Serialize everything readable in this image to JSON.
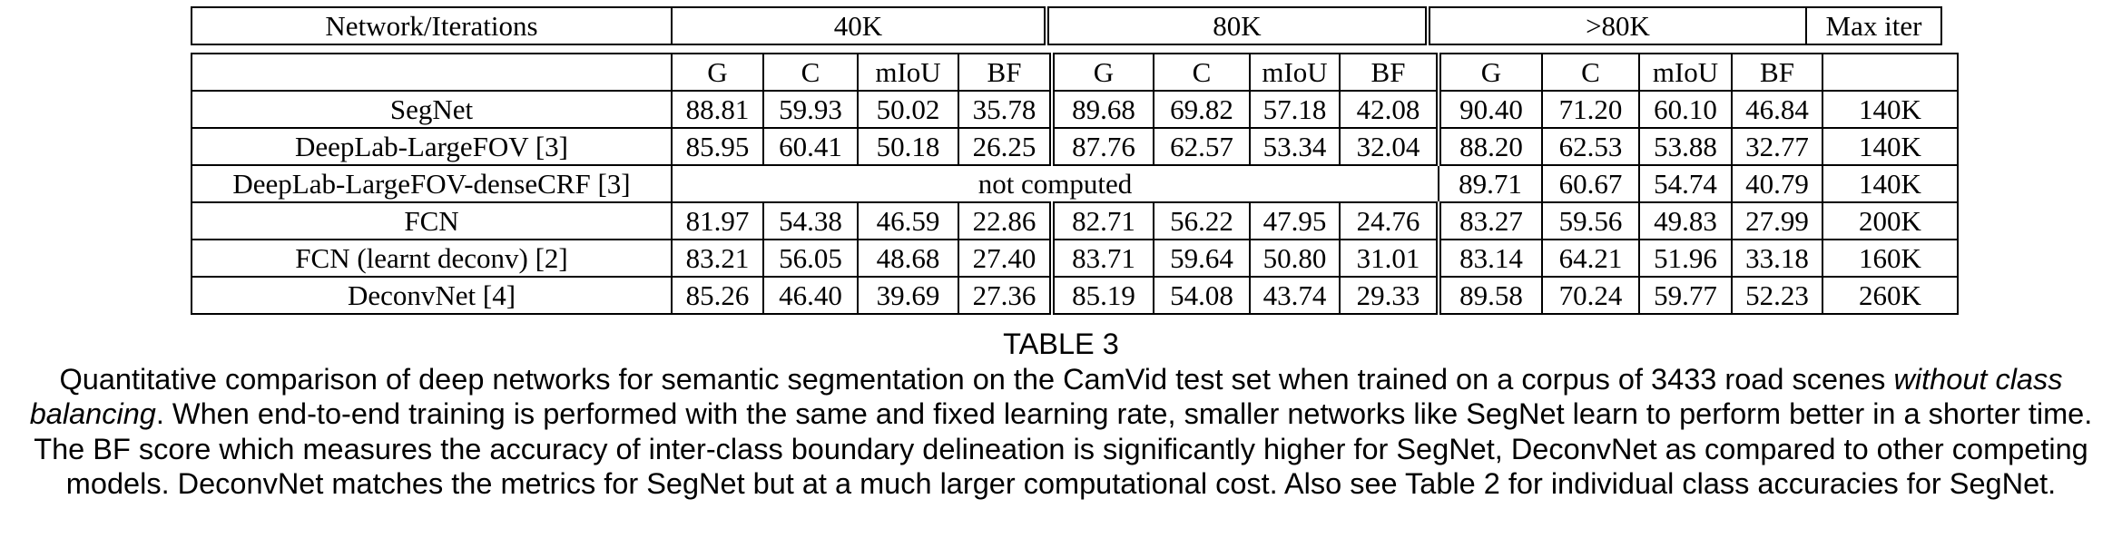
{
  "table": {
    "group_header": [
      "Network/Iterations",
      "40K",
      "80K",
      ">80K",
      "Max iter"
    ],
    "sub_header": [
      "G",
      "C",
      "mIoU",
      "BF"
    ],
    "rows": [
      {
        "name": "SegNet",
        "cells": [
          "88.81",
          "59.93",
          "50.02",
          "35.78",
          "89.68",
          "69.82",
          "57.18",
          "42.08",
          "90.40",
          "71.20",
          "60.10",
          "46.84"
        ],
        "max_iter": "140K"
      },
      {
        "name": "DeepLab-LargeFOV [3]",
        "cells": [
          "85.95",
          "60.41",
          "50.18",
          "26.25",
          "87.76",
          "62.57",
          "53.34",
          "32.04",
          "88.20",
          "62.53",
          "53.88",
          "32.77"
        ],
        "max_iter": "140K"
      },
      {
        "name": "DeepLab-LargeFOV-denseCRF [3]",
        "merged": "not computed",
        "cells": [
          "89.71",
          "60.67",
          "54.74",
          "40.79"
        ],
        "max_iter": "140K"
      },
      {
        "name": "FCN",
        "cells": [
          "81.97",
          "54.38",
          "46.59",
          "22.86",
          "82.71",
          "56.22",
          "47.95",
          "24.76",
          "83.27",
          "59.56",
          "49.83",
          "27.99"
        ],
        "max_iter": "200K"
      },
      {
        "name": "FCN (learnt deconv) [2]",
        "cells": [
          "83.21",
          "56.05",
          "48.68",
          "27.40",
          "83.71",
          "59.64",
          "50.80",
          "31.01",
          "83.14",
          "64.21",
          "51.96",
          "33.18"
        ],
        "max_iter": "160K"
      },
      {
        "name": "DeconvNet [4]",
        "cells": [
          "85.26",
          "46.40",
          "39.69",
          "27.36",
          "85.19",
          "54.08",
          "43.74",
          "29.33",
          "89.58",
          "70.24",
          "59.77",
          "52.23"
        ],
        "max_iter": "260K"
      }
    ]
  },
  "caption": {
    "label": "TABLE 3",
    "text_before": "Quantitative comparison of deep networks for semantic segmentation on the CamVid test set when trained on a corpus of 3433 road scenes",
    "emphasis": "without class balancing",
    "text_after": ". When end-to-end training is performed with the same and fixed learning rate, smaller networks like SegNet learn to perform better in a shorter time. The BF score which measures the accuracy of inter-class boundary delineation is significantly higher for SegNet, DeconvNet as compared to other competing models. DeconvNet matches the metrics for SegNet but at a much larger computational cost. Also see Table 2 for individual class accuracies for SegNet."
  }
}
